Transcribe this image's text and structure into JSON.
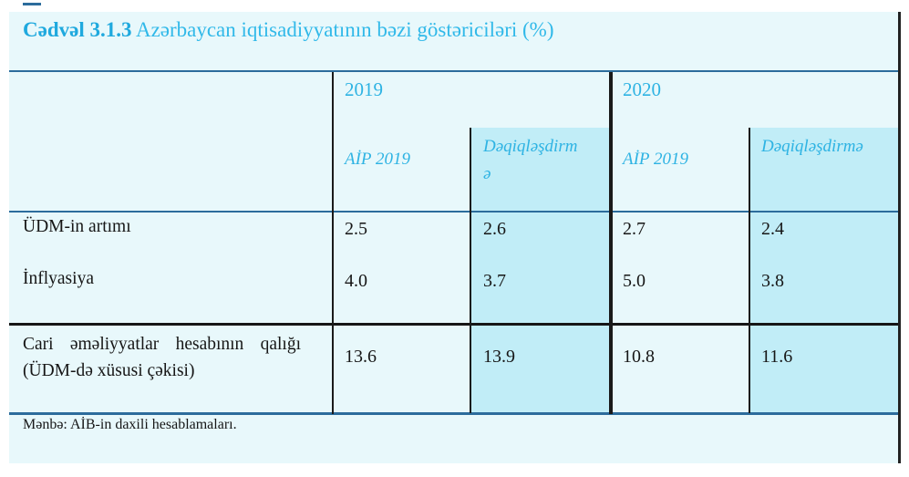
{
  "document": {
    "title": {
      "number": "Cədvəl 3.1.3",
      "text": "Azərbaycan iqtisadiyyatının bəzi göstəriciləri (%)"
    }
  },
  "table": {
    "column_groups": [
      {
        "year": "2019",
        "columns": [
          "AİP 2019",
          "Dəqiqləşdirmə"
        ]
      },
      {
        "year": "2020",
        "columns": [
          "AİP 2019",
          "Dəqiqləşdirmə"
        ]
      }
    ],
    "rows": [
      {
        "label": "ÜDM-in artımı",
        "values": [
          "2.5",
          "2.6",
          "2.7",
          "2.4"
        ]
      },
      {
        "label": "İnflyasiya",
        "values": [
          "4.0",
          "3.7",
          "5.0",
          "3.8"
        ]
      },
      {
        "label": "Cari əməliyyatlar hesabının qalığı (ÜDM-də xüsusi çəkisi)",
        "values": [
          "13.6",
          "13.9",
          "10.8",
          "11.6"
        ]
      }
    ],
    "source_note": "Mənbə: AİB-in daxili hesablamaları."
  },
  "colors": {
    "background": "#e8f8fb",
    "column_shade": "#c1edf7",
    "accent_cyan": "#2eb3e3",
    "title_bold_cyan": "#1fa9de",
    "line_blue": "#2c6c9c",
    "line_black": "#1a1a1a",
    "text_black": "#161616"
  }
}
